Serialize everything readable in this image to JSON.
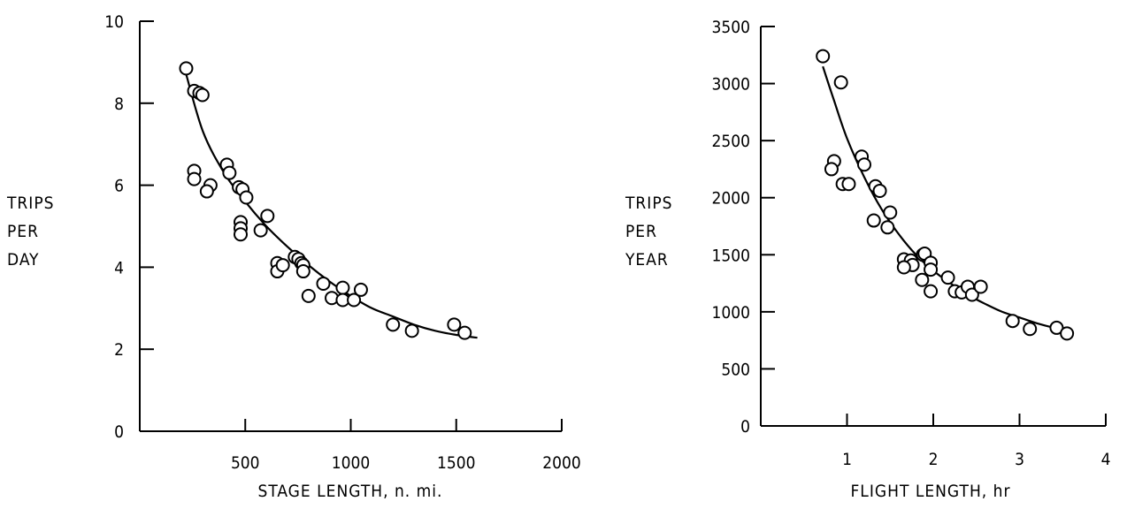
{
  "chart_data": [
    {
      "type": "scatter",
      "title": "",
      "xlabel": "STAGE LENGTH, n. mi.",
      "ylabel_lines": [
        "TRIPS",
        "PER",
        "DAY"
      ],
      "xlim": [
        0,
        2000
      ],
      "ylim": [
        0,
        10
      ],
      "xticks": [
        500,
        1000,
        1500,
        2000
      ],
      "yticks": [
        0,
        2,
        4,
        6,
        8,
        10
      ],
      "grid": false,
      "legend": "none",
      "points": [
        {
          "x": 220,
          "y": 8.85
        },
        {
          "x": 258,
          "y": 8.3
        },
        {
          "x": 283,
          "y": 8.25
        },
        {
          "x": 297,
          "y": 8.2
        },
        {
          "x": 258,
          "y": 6.35
        },
        {
          "x": 258,
          "y": 6.15
        },
        {
          "x": 335,
          "y": 6.0
        },
        {
          "x": 318,
          "y": 5.85
        },
        {
          "x": 413,
          "y": 6.5
        },
        {
          "x": 425,
          "y": 6.3
        },
        {
          "x": 470,
          "y": 5.95
        },
        {
          "x": 487,
          "y": 5.9
        },
        {
          "x": 505,
          "y": 5.7
        },
        {
          "x": 478,
          "y": 5.1
        },
        {
          "x": 478,
          "y": 4.95
        },
        {
          "x": 478,
          "y": 4.8
        },
        {
          "x": 573,
          "y": 4.9
        },
        {
          "x": 605,
          "y": 5.25
        },
        {
          "x": 652,
          "y": 4.1
        },
        {
          "x": 652,
          "y": 3.9
        },
        {
          "x": 678,
          "y": 4.05
        },
        {
          "x": 735,
          "y": 4.25
        },
        {
          "x": 752,
          "y": 4.2
        },
        {
          "x": 766,
          "y": 4.1
        },
        {
          "x": 775,
          "y": 4.05
        },
        {
          "x": 775,
          "y": 3.9
        },
        {
          "x": 800,
          "y": 3.3
        },
        {
          "x": 870,
          "y": 3.6
        },
        {
          "x": 910,
          "y": 3.25
        },
        {
          "x": 962,
          "y": 3.5
        },
        {
          "x": 962,
          "y": 3.2
        },
        {
          "x": 1015,
          "y": 3.2
        },
        {
          "x": 1048,
          "y": 3.45
        },
        {
          "x": 1200,
          "y": 2.6
        },
        {
          "x": 1290,
          "y": 2.45
        },
        {
          "x": 1490,
          "y": 2.6
        },
        {
          "x": 1540,
          "y": 2.4
        }
      ],
      "fit_curve": [
        [
          220,
          8.7
        ],
        [
          300,
          7.3
        ],
        [
          400,
          6.3
        ],
        [
          500,
          5.6
        ],
        [
          600,
          5.0
        ],
        [
          700,
          4.5
        ],
        [
          800,
          4.05
        ],
        [
          900,
          3.65
        ],
        [
          1000,
          3.3
        ],
        [
          1100,
          3.0
        ],
        [
          1200,
          2.8
        ],
        [
          1300,
          2.6
        ],
        [
          1400,
          2.45
        ],
        [
          1500,
          2.35
        ],
        [
          1600,
          2.28
        ]
      ]
    },
    {
      "type": "scatter",
      "title": "",
      "xlabel": "FLIGHT LENGTH, hr",
      "ylabel_lines": [
        "TRIPS",
        "PER",
        "YEAR"
      ],
      "xlim": [
        0,
        4
      ],
      "ylim": [
        0,
        3500
      ],
      "xticks": [
        1,
        2,
        3,
        4
      ],
      "yticks": [
        0,
        500,
        1000,
        1500,
        2000,
        2500,
        3000,
        3500
      ],
      "grid": false,
      "legend": "none",
      "points": [
        {
          "x": 0.72,
          "y": 3240
        },
        {
          "x": 0.93,
          "y": 3010
        },
        {
          "x": 0.85,
          "y": 2320
        },
        {
          "x": 0.82,
          "y": 2250
        },
        {
          "x": 0.95,
          "y": 2120
        },
        {
          "x": 1.02,
          "y": 2120
        },
        {
          "x": 1.17,
          "y": 2360
        },
        {
          "x": 1.2,
          "y": 2290
        },
        {
          "x": 1.33,
          "y": 2100
        },
        {
          "x": 1.38,
          "y": 2060
        },
        {
          "x": 1.31,
          "y": 1800
        },
        {
          "x": 1.5,
          "y": 1870
        },
        {
          "x": 1.47,
          "y": 1740
        },
        {
          "x": 1.66,
          "y": 1460
        },
        {
          "x": 1.74,
          "y": 1450
        },
        {
          "x": 1.76,
          "y": 1410
        },
        {
          "x": 1.66,
          "y": 1390
        },
        {
          "x": 1.88,
          "y": 1500
        },
        {
          "x": 1.9,
          "y": 1510
        },
        {
          "x": 1.97,
          "y": 1430
        },
        {
          "x": 1.97,
          "y": 1370
        },
        {
          "x": 1.87,
          "y": 1280
        },
        {
          "x": 1.97,
          "y": 1180
        },
        {
          "x": 2.17,
          "y": 1300
        },
        {
          "x": 2.25,
          "y": 1180
        },
        {
          "x": 2.33,
          "y": 1170
        },
        {
          "x": 2.4,
          "y": 1220
        },
        {
          "x": 2.45,
          "y": 1150
        },
        {
          "x": 2.55,
          "y": 1220
        },
        {
          "x": 2.92,
          "y": 920
        },
        {
          "x": 3.12,
          "y": 850
        },
        {
          "x": 3.43,
          "y": 860
        },
        {
          "x": 3.55,
          "y": 810
        }
      ],
      "fit_curve": [
        [
          0.72,
          3150
        ],
        [
          0.85,
          2850
        ],
        [
          1.0,
          2520
        ],
        [
          1.2,
          2180
        ],
        [
          1.4,
          1900
        ],
        [
          1.6,
          1680
        ],
        [
          1.8,
          1500
        ],
        [
          2.0,
          1360
        ],
        [
          2.2,
          1250
        ],
        [
          2.4,
          1150
        ],
        [
          2.6,
          1070
        ],
        [
          2.8,
          1000
        ],
        [
          3.0,
          950
        ],
        [
          3.2,
          900
        ],
        [
          3.4,
          860
        ],
        [
          3.6,
          830
        ]
      ]
    }
  ]
}
